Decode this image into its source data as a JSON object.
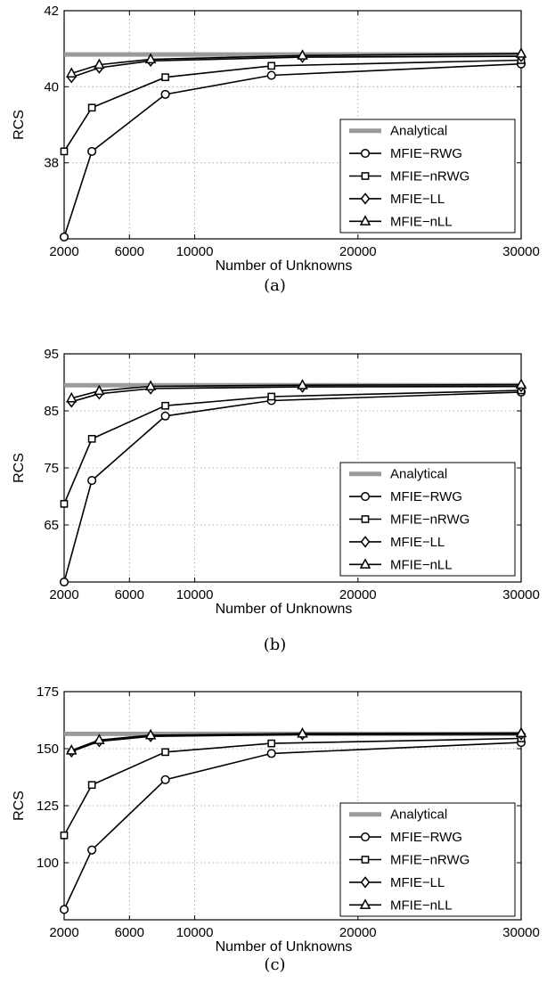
{
  "chart_data": [
    {
      "type": "line",
      "caption": "(a)",
      "xlabel": "Number of Unknowns",
      "ylabel": "RCS",
      "xlim": [
        2000,
        30000
      ],
      "ylim": [
        36,
        42
      ],
      "xticks": [
        2000,
        6000,
        10000,
        20000,
        30000
      ],
      "yticks": [
        38,
        40,
        42
      ],
      "grid": true,
      "legend_position": "bottom-right",
      "series": [
        {
          "name": "Analytical",
          "marker": "none",
          "x": [
            2000,
            30000
          ],
          "y": [
            40.85,
            40.85
          ]
        },
        {
          "name": "MFIE−RWG",
          "marker": "circle",
          "x": [
            2000,
            3700,
            8200,
            14700,
            30000
          ],
          "y": [
            36.05,
            38.3,
            39.8,
            40.3,
            40.6
          ]
        },
        {
          "name": "MFIE−nRWG",
          "marker": "square",
          "x": [
            2000,
            3700,
            8200,
            14700,
            30000
          ],
          "y": [
            38.3,
            39.45,
            40.25,
            40.55,
            40.7
          ]
        },
        {
          "name": "MFIE−LL",
          "marker": "diamond",
          "x": [
            2450,
            4150,
            7300,
            16600,
            30000
          ],
          "y": [
            40.25,
            40.5,
            40.68,
            40.78,
            40.8
          ]
        },
        {
          "name": "MFIE−nLL",
          "marker": "triangle",
          "x": [
            2450,
            4150,
            7300,
            16600,
            30000
          ],
          "y": [
            40.35,
            40.58,
            40.72,
            40.82,
            40.87
          ]
        }
      ]
    },
    {
      "type": "line",
      "caption": "(b)",
      "xlabel": "Number of Unknowns",
      "ylabel": "RCS",
      "xlim": [
        2000,
        30000
      ],
      "ylim": [
        55,
        95
      ],
      "xticks": [
        2000,
        6000,
        10000,
        20000,
        30000
      ],
      "yticks": [
        65,
        75,
        85,
        95
      ],
      "grid": true,
      "legend_position": "bottom-right",
      "series": [
        {
          "name": "Analytical",
          "marker": "none",
          "x": [
            2000,
            30000
          ],
          "y": [
            89.5,
            89.5
          ]
        },
        {
          "name": "MFIE−RWG",
          "marker": "circle",
          "x": [
            2000,
            3700,
            8200,
            14700,
            30000
          ],
          "y": [
            55.0,
            72.8,
            84.1,
            86.8,
            88.3
          ]
        },
        {
          "name": "MFIE−nRWG",
          "marker": "square",
          "x": [
            2000,
            3700,
            8200,
            14700,
            30000
          ],
          "y": [
            68.7,
            80.1,
            85.9,
            87.5,
            88.6
          ]
        },
        {
          "name": "MFIE−LL",
          "marker": "diamond",
          "x": [
            2450,
            4150,
            7300,
            16600,
            30000
          ],
          "y": [
            86.6,
            88.0,
            88.9,
            89.2,
            89.3
          ]
        },
        {
          "name": "MFIE−nLL",
          "marker": "triangle",
          "x": [
            2450,
            4150,
            7300,
            16600,
            30000
          ],
          "y": [
            87.2,
            88.5,
            89.3,
            89.5,
            89.6
          ]
        }
      ]
    },
    {
      "type": "line",
      "caption": "(c)",
      "xlabel": "Number of Unknowns",
      "ylabel": "RCS",
      "xlim": [
        2000,
        30000
      ],
      "ylim": [
        75,
        175
      ],
      "xticks": [
        2000,
        6000,
        10000,
        20000,
        30000
      ],
      "yticks": [
        100,
        125,
        150,
        175
      ],
      "grid": true,
      "legend_position": "bottom-right",
      "series": [
        {
          "name": "Analytical",
          "marker": "none",
          "x": [
            2000,
            30000
          ],
          "y": [
            156.5,
            156.5
          ]
        },
        {
          "name": "MFIE−RWG",
          "marker": "circle",
          "x": [
            2000,
            3700,
            8200,
            14700,
            30000
          ],
          "y": [
            79.5,
            105.6,
            136.4,
            147.9,
            152.7
          ]
        },
        {
          "name": "MFIE−nRWG",
          "marker": "square",
          "x": [
            2000,
            3700,
            8200,
            14700,
            30000
          ],
          "y": [
            112.0,
            134.1,
            148.5,
            152.3,
            154.5
          ]
        },
        {
          "name": "MFIE−LL",
          "marker": "diamond",
          "x": [
            2450,
            4150,
            7300,
            16600,
            30000
          ],
          "y": [
            148.7,
            153.2,
            155.4,
            156.2,
            156.3
          ]
        },
        {
          "name": "MFIE−nLL",
          "marker": "triangle",
          "x": [
            2450,
            4150,
            7300,
            16600,
            30000
          ],
          "y": [
            149.2,
            153.8,
            155.9,
            156.6,
            156.8
          ]
        }
      ]
    }
  ]
}
